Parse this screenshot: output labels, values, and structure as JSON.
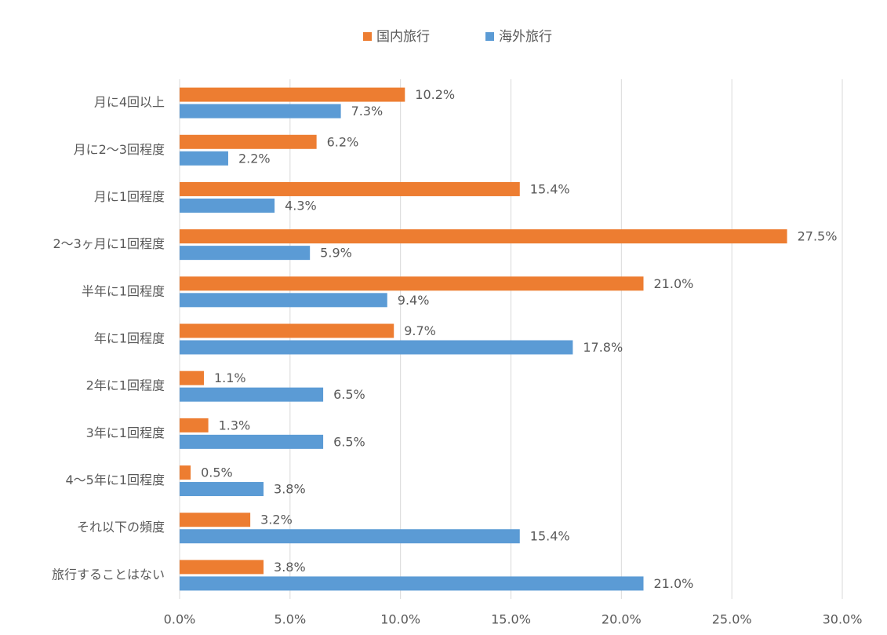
{
  "chart_data": {
    "type": "bar",
    "orientation": "horizontal",
    "categories": [
      "月に4回以上",
      "月に2〜3回程度",
      "月に1回程度",
      "2〜3ヶ月に1回程度",
      "半年に1回程度",
      "年に1回程度",
      "2年に1回程度",
      "3年に1回程度",
      "4〜5年に1回程度",
      "それ以下の頻度",
      "旅行することはない"
    ],
    "series": [
      {
        "name": "国内旅行",
        "color": "#ED7D31",
        "values": [
          10.2,
          6.2,
          15.4,
          27.5,
          21.0,
          9.7,
          1.1,
          1.3,
          0.5,
          3.2,
          3.8
        ],
        "labels": [
          "10.2%",
          "6.2%",
          "15.4%",
          "27.5%",
          "21.0%",
          "9.7%",
          "1.1%",
          "1.3%",
          "0.5%",
          "3.2%",
          "3.8%"
        ]
      },
      {
        "name": "海外旅行",
        "color": "#5B9BD5",
        "values": [
          7.3,
          2.2,
          4.3,
          5.9,
          9.4,
          17.8,
          6.5,
          6.5,
          3.8,
          15.4,
          21.0
        ],
        "labels": [
          "7.3%",
          "2.2%",
          "4.3%",
          "5.9%",
          "9.4%",
          "17.8%",
          "6.5%",
          "6.5%",
          "3.8%",
          "15.4%",
          "21.0%"
        ]
      }
    ],
    "xlim": [
      0,
      30
    ],
    "x_ticks": [
      0,
      5,
      10,
      15,
      20,
      25,
      30
    ],
    "x_tick_labels": [
      "0.0%",
      "5.0%",
      "10.0%",
      "15.0%",
      "20.0%",
      "25.0%",
      "30.0%"
    ],
    "title": "",
    "xlabel": "",
    "ylabel": "",
    "grid": "vertical",
    "legend_position": "top"
  }
}
